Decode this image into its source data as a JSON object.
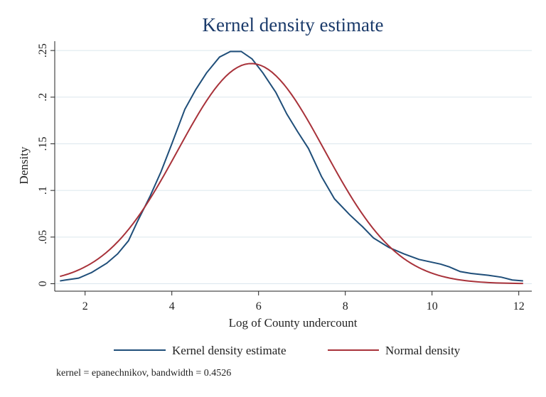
{
  "chart_data": {
    "type": "line",
    "title": "Kernel density estimate",
    "xlabel": "Log of County undercount",
    "ylabel": "Density",
    "xlim": [
      1.3,
      12.3
    ],
    "ylim": [
      -0.008,
      0.26
    ],
    "x_ticks": [
      2,
      4,
      6,
      8,
      10,
      12
    ],
    "x_tick_labels": [
      "2",
      "4",
      "6",
      "8",
      "10",
      "12"
    ],
    "y_ticks": [
      0,
      0.05,
      0.1,
      0.15,
      0.2,
      0.25
    ],
    "y_tick_labels": [
      "0",
      ".05",
      ".1",
      ".15",
      ".2",
      ".25"
    ],
    "grid": true,
    "legend_position": "bottom",
    "note": "kernel = epanechnikov, bandwidth = 0.4526",
    "series": [
      {
        "name": "Kernel density estimate",
        "color": "#1f4e79",
        "x": [
          1.42,
          1.55,
          1.85,
          2.15,
          2.5,
          2.75,
          3.0,
          3.2,
          3.5,
          3.75,
          4.0,
          4.3,
          4.55,
          4.8,
          5.1,
          5.35,
          5.6,
          5.85,
          6.1,
          6.4,
          6.65,
          6.9,
          7.15,
          7.45,
          7.75,
          8.1,
          8.4,
          8.65,
          9.0,
          9.35,
          9.7,
          10.2,
          10.4,
          10.65,
          10.9,
          11.3,
          11.6,
          11.85,
          12.1
        ],
        "y": [
          0.003,
          0.004,
          0.006,
          0.012,
          0.022,
          0.032,
          0.046,
          0.066,
          0.094,
          0.12,
          0.15,
          0.187,
          0.208,
          0.226,
          0.243,
          0.249,
          0.249,
          0.241,
          0.226,
          0.205,
          0.182,
          0.163,
          0.145,
          0.115,
          0.091,
          0.074,
          0.061,
          0.049,
          0.039,
          0.032,
          0.026,
          0.021,
          0.018,
          0.013,
          0.011,
          0.009,
          0.007,
          0.004,
          0.003
        ]
      },
      {
        "name": "Normal density",
        "color": "#a8323a",
        "mean": 5.83,
        "sd": 1.69,
        "x_range": [
          1.42,
          12.1
        ]
      }
    ]
  }
}
